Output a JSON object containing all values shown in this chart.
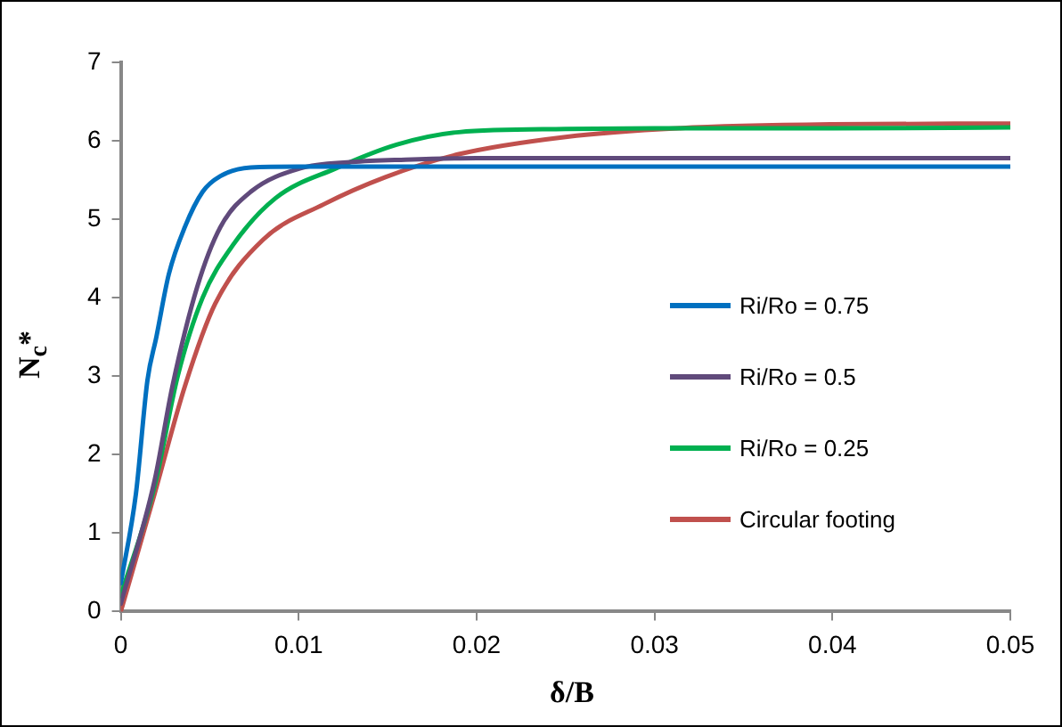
{
  "chart_data": {
    "type": "line",
    "xlabel": "δ/B",
    "ylabel": "N$_{c}$*",
    "xlim": [
      0,
      0.05
    ],
    "xticks": [
      0,
      0.01,
      0.02,
      0.03,
      0.04,
      0.05
    ],
    "ylim": [
      0,
      7
    ],
    "yticks": [
      0,
      1,
      2,
      3,
      4,
      5,
      6,
      7
    ],
    "grid": false,
    "legend": "right",
    "marker": "none",
    "line_style": "solid",
    "series": [
      {
        "name": "Ri/Ro = 0.75",
        "color": "#0070c0",
        "x": [
          0,
          0.00085,
          0.0015,
          0.002,
          0.0027,
          0.0036,
          0.0046,
          0.0056,
          0.0073,
          0.01,
          0.02,
          0.03,
          0.04,
          0.05
        ],
        "values": [
          0.36,
          1.5,
          2.95,
          3.5,
          4.3,
          4.9,
          5.35,
          5.55,
          5.66,
          5.67,
          5.67,
          5.67,
          5.67,
          5.67
        ]
      },
      {
        "name": "Ri/Ro = 0.5",
        "color": "#604a7b",
        "x": [
          0,
          0.0019,
          0.0029,
          0.0043,
          0.0056,
          0.0073,
          0.0101,
          0.013,
          0.016,
          0.02,
          0.03,
          0.04,
          0.05
        ],
        "values": [
          0.1,
          1.67,
          2.87,
          4.14,
          4.9,
          5.35,
          5.65,
          5.73,
          5.76,
          5.78,
          5.78,
          5.78,
          5.78
        ]
      },
      {
        "name": "Ri/Ro = 0.25",
        "color": "#00b050",
        "x": [
          0,
          0.0019,
          0.0032,
          0.0046,
          0.0063,
          0.0087,
          0.0121,
          0.0155,
          0.019,
          0.025,
          0.03,
          0.04,
          0.05
        ],
        "values": [
          0.2,
          1.6,
          3.0,
          4.0,
          4.67,
          5.27,
          5.65,
          5.95,
          6.11,
          6.15,
          6.16,
          6.16,
          6.17
        ]
      },
      {
        "name": "Circular footing",
        "color": "#c0504d",
        "x": [
          0,
          0.0019,
          0.0036,
          0.0053,
          0.008,
          0.0114,
          0.0149,
          0.019,
          0.025,
          0.0313,
          0.04,
          0.05
        ],
        "values": [
          0,
          1.5,
          2.87,
          3.92,
          4.74,
          5.19,
          5.54,
          5.83,
          6.05,
          6.16,
          6.21,
          6.22
        ]
      }
    ]
  }
}
